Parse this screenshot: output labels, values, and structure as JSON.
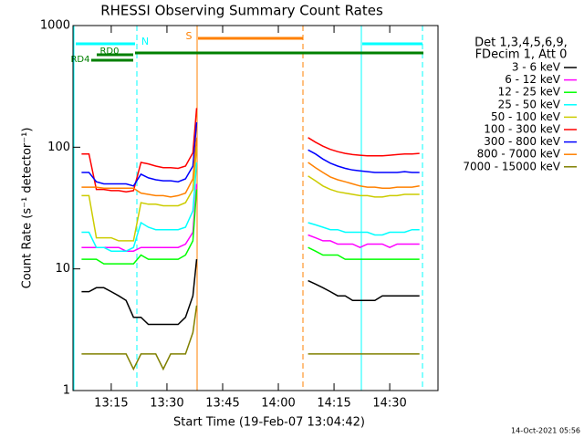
{
  "chart_data": {
    "type": "line",
    "title": "RHESSI Observing Summary Count Rates",
    "xlabel": "Start Time (19-Feb-07 13:04:42)",
    "ylabel": "Count Rate (s⁻¹ detector⁻¹)",
    "legend_header": [
      "Det 1,3,4,5,6,9,",
      "FDecim 1, Att 0"
    ],
    "footer": "14-Oct-2021 05:56",
    "annotations": [
      "RD0",
      "RD4",
      "N",
      "S"
    ],
    "log_y": true,
    "xlim": [
      784.7,
      883
    ],
    "xticks": [
      {
        "value": 795,
        "label": "13:15"
      },
      {
        "value": 810,
        "label": "13:30"
      },
      {
        "value": 825,
        "label": "13:45"
      },
      {
        "value": 840,
        "label": "14:00"
      },
      {
        "value": 855,
        "label": "14:15"
      },
      {
        "value": 870,
        "label": "14:30"
      }
    ],
    "ylim": [
      1,
      1000
    ],
    "yticks": [
      1,
      10,
      100,
      1000
    ],
    "x": [
      787,
      789,
      791,
      793,
      795,
      797,
      799,
      801,
      803,
      805,
      807,
      809,
      811,
      813,
      815,
      817,
      818,
      830,
      848,
      850,
      852,
      854,
      856,
      858,
      860,
      862,
      864,
      866,
      868,
      870,
      872,
      874,
      876,
      878
    ],
    "series": [
      {
        "name": "3 - 6 keV",
        "color": "#000000",
        "values": [
          6.5,
          6.5,
          7,
          7,
          6.5,
          6,
          5.5,
          4,
          4,
          3.5,
          3.5,
          3.5,
          3.5,
          3.5,
          4,
          6,
          12,
          null,
          8,
          7.5,
          7,
          6.5,
          6,
          6,
          5.5,
          5.5,
          5.5,
          5.5,
          6,
          6,
          6,
          6,
          6,
          6
        ]
      },
      {
        "name": "6 - 12 keV",
        "color": "#ff00ff",
        "values": [
          15,
          15,
          15,
          15,
          15,
          15,
          14,
          14,
          15,
          15,
          15,
          15,
          15,
          15,
          16,
          20,
          50,
          null,
          19,
          18,
          17,
          17,
          16,
          16,
          16,
          15,
          16,
          16,
          16,
          15,
          16,
          16,
          16,
          16
        ]
      },
      {
        "name": "12 - 25 keV",
        "color": "#00ff00",
        "values": [
          12,
          12,
          12,
          11,
          11,
          11,
          11,
          11,
          13,
          12,
          12,
          12,
          12,
          12,
          13,
          17,
          45,
          null,
          15,
          14,
          13,
          13,
          13,
          12,
          12,
          12,
          12,
          12,
          12,
          12,
          12,
          12,
          12,
          12
        ]
      },
      {
        "name": "25 - 50 keV",
        "color": "#00ffff",
        "values": [
          20,
          20,
          15,
          15,
          14,
          14,
          14,
          15,
          24,
          22,
          21,
          21,
          21,
          21,
          22,
          30,
          75,
          null,
          24,
          23,
          22,
          21,
          21,
          20,
          20,
          20,
          20,
          19,
          19,
          20,
          20,
          20,
          21,
          21
        ]
      },
      {
        "name": "50 - 100 keV",
        "color": "#cccc00",
        "values": [
          40,
          40,
          18,
          18,
          18,
          17,
          17,
          17,
          35,
          34,
          34,
          33,
          33,
          33,
          35,
          45,
          100,
          null,
          58,
          53,
          48,
          45,
          43,
          42,
          41,
          40,
          40,
          39,
          39,
          40,
          40,
          41,
          41,
          41
        ]
      },
      {
        "name": "100 - 300 keV",
        "color": "#ff0000",
        "values": [
          88,
          88,
          45,
          45,
          44,
          44,
          43,
          44,
          75,
          73,
          70,
          68,
          68,
          67,
          70,
          90,
          210,
          null,
          120,
          110,
          102,
          96,
          92,
          89,
          87,
          86,
          85,
          85,
          85,
          86,
          87,
          88,
          88,
          89
        ]
      },
      {
        "name": "300 - 800 keV",
        "color": "#0000ff",
        "values": [
          62,
          62,
          52,
          50,
          50,
          50,
          50,
          48,
          60,
          56,
          54,
          53,
          53,
          52,
          55,
          70,
          160,
          null,
          95,
          88,
          80,
          74,
          70,
          67,
          65,
          64,
          63,
          62,
          62,
          62,
          62,
          63,
          62,
          62
        ]
      },
      {
        "name": "800 - 7000 keV",
        "color": "#ff8000",
        "values": [
          47,
          47,
          47,
          46,
          46,
          46,
          46,
          46,
          42,
          41,
          40,
          40,
          39,
          40,
          42,
          55,
          120,
          null,
          75,
          68,
          62,
          57,
          54,
          52,
          50,
          48,
          47,
          47,
          46,
          46,
          47,
          47,
          47,
          48
        ]
      },
      {
        "name": "7000 - 15000 keV",
        "color": "#808000",
        "values": [
          2,
          2,
          2,
          2,
          2,
          2,
          2,
          1.5,
          2,
          2,
          2,
          1.5,
          2,
          2,
          2,
          3,
          5,
          null,
          2,
          2,
          2,
          2,
          2,
          2,
          2,
          2,
          2,
          2,
          2,
          2,
          2,
          2,
          2,
          2
        ]
      }
    ]
  }
}
